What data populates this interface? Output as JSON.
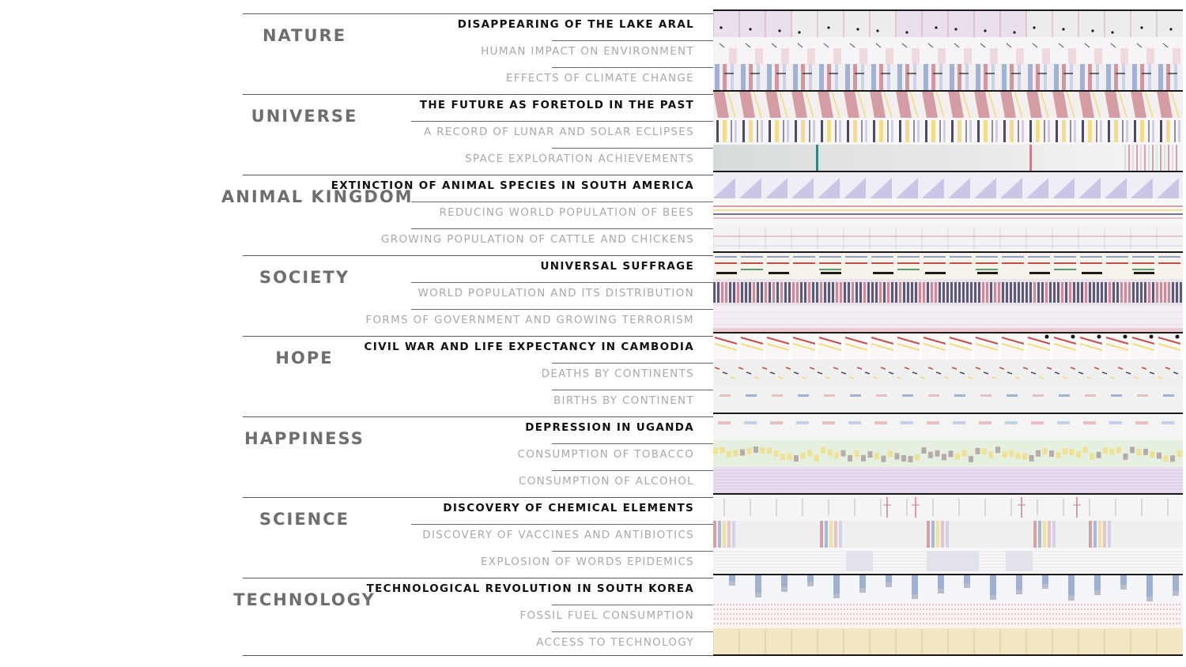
{
  "categories": [
    {
      "name": "Nature",
      "topics": [
        {
          "label": "Disappearing of the Lake Aral",
          "emphasis": "primary"
        },
        {
          "label": "Human impact on environment",
          "emphasis": "secondary"
        },
        {
          "label": "Effects of climate change",
          "emphasis": "secondary"
        }
      ]
    },
    {
      "name": "Universe",
      "topics": [
        {
          "label": "The future as foretold in the past",
          "emphasis": "primary"
        },
        {
          "label": "A record of lunar and solar eclipses",
          "emphasis": "secondary"
        },
        {
          "label": "Space exploration achievements",
          "emphasis": "secondary"
        }
      ]
    },
    {
      "name": "Animal Kingdom",
      "topics": [
        {
          "label": "Extinction of animal species in South America",
          "emphasis": "primary"
        },
        {
          "label": "Reducing world population of bees",
          "emphasis": "secondary"
        },
        {
          "label": "Growing population of cattle and chickens",
          "emphasis": "secondary"
        }
      ]
    },
    {
      "name": "Society",
      "topics": [
        {
          "label": "Universal suffrage",
          "emphasis": "primary"
        },
        {
          "label": "World population and its distribution",
          "emphasis": "secondary"
        },
        {
          "label": "Forms of government and growing terrorism",
          "emphasis": "secondary"
        }
      ]
    },
    {
      "name": "Hope",
      "topics": [
        {
          "label": "Civil war and life expectancy in Cambodia",
          "emphasis": "primary"
        },
        {
          "label": "Deaths by continents",
          "emphasis": "secondary"
        },
        {
          "label": "Births by continent",
          "emphasis": "secondary"
        }
      ]
    },
    {
      "name": "Happiness",
      "topics": [
        {
          "label": "Depression in Uganda",
          "emphasis": "primary"
        },
        {
          "label": "Consumption of tobacco",
          "emphasis": "secondary"
        },
        {
          "label": "Consumption of alcohol",
          "emphasis": "secondary"
        }
      ]
    },
    {
      "name": "Science",
      "topics": [
        {
          "label": "Discovery of chemical elements",
          "emphasis": "primary"
        },
        {
          "label": "Discovery of vaccines and antibiotics",
          "emphasis": "secondary"
        },
        {
          "label": "Explosion of words epidemics",
          "emphasis": "secondary"
        }
      ]
    },
    {
      "name": "Technology",
      "topics": [
        {
          "label": "Technological revolution in South Korea",
          "emphasis": "primary"
        },
        {
          "label": "Fossil fuel consumption",
          "emphasis": "secondary"
        },
        {
          "label": "Access to technology",
          "emphasis": "secondary"
        }
      ]
    }
  ],
  "palette": {
    "pink": "#c9808a",
    "rose": "#e3b3b6",
    "blue": "#8fa3c9",
    "lightblue": "#b9c6e2",
    "lavender": "#c9c6e6",
    "yellow": "#f0dc82",
    "navy": "#4e4a66",
    "teal": "#3e7f82",
    "cream": "#f3e6c3",
    "grey": "#d6d6d6",
    "lightgrey": "#ececec",
    "mint": "#e6f0e0",
    "lilac": "#e8dcee",
    "red": "#c0504d",
    "green": "#5a9a6e",
    "black": "#1a1a1a"
  }
}
